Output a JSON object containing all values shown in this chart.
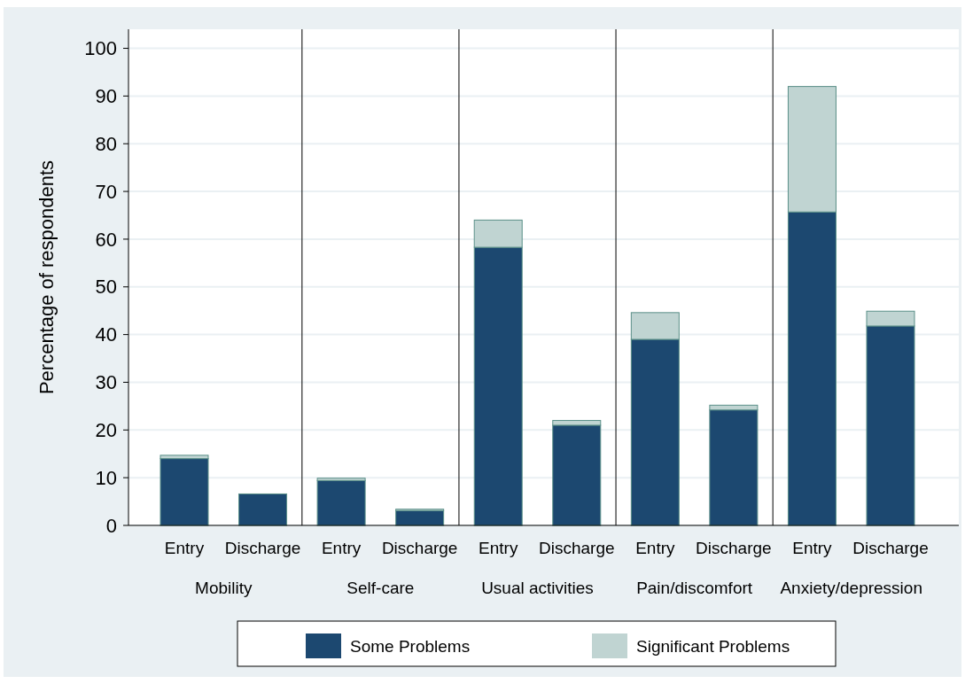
{
  "chart_data": {
    "type": "bar",
    "stacked": true,
    "ylabel": "Percentage of respondents",
    "categories": [
      "Entry",
      "Discharge",
      "Entry",
      "Discharge",
      "Entry",
      "Discharge",
      "Entry",
      "Discharge",
      "Entry",
      "Discharge"
    ],
    "annotations": [
      "Mobility",
      "Self-care",
      "Usual activities",
      "Pain/discomfort",
      "Anxiety/depression"
    ],
    "series": [
      {
        "name": "Some Problems",
        "color": "#1c4870",
        "values": [
          14.0,
          6.6,
          9.4,
          3.1,
          58.3,
          21.0,
          39.0,
          24.2,
          65.7,
          41.8
        ]
      },
      {
        "name": "Significant Problems",
        "color": "#c0d4d2",
        "values": [
          0.7,
          0,
          0.5,
          0.3,
          5.7,
          1.0,
          5.6,
          1.0,
          26.3,
          3.1
        ]
      }
    ],
    "ylim": [
      0,
      104
    ],
    "yticks": [
      0,
      10,
      20,
      30,
      40,
      50,
      60,
      70,
      80,
      90,
      100
    ],
    "grid": "y",
    "legend": "bottom"
  }
}
